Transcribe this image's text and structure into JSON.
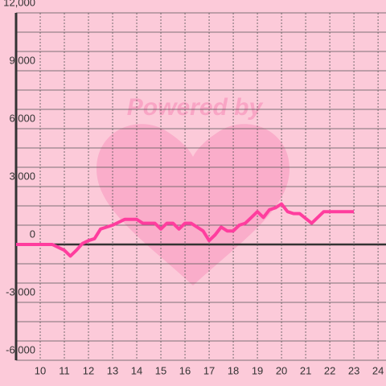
{
  "chart_data": {
    "type": "line",
    "watermark": "Powered by",
    "x": [
      9,
      10.5,
      11,
      11.25,
      11.5,
      11.75,
      12,
      12.25,
      12.5,
      13,
      13.5,
      14,
      14.25,
      14.75,
      15,
      15.25,
      15.5,
      15.75,
      16,
      16.25,
      16.75,
      17,
      17.25,
      17.5,
      17.75,
      18,
      18.25,
      18.5,
      18.75,
      19,
      19.25,
      19.5,
      19.75,
      20,
      20.25,
      20.5,
      20.75,
      21.25,
      21.75,
      22.25,
      23
    ],
    "series": [
      {
        "color": "#ff3d9e",
        "values": [
          0,
          0,
          -300,
          -600,
          -300,
          50,
          200,
          300,
          800,
          1000,
          1300,
          1300,
          1100,
          1100,
          800,
          1100,
          1100,
          800,
          1100,
          1100,
          700,
          200,
          500,
          900,
          700,
          700,
          1000,
          1100,
          1400,
          1700,
          1400,
          1800,
          1900,
          2100,
          1700,
          1600,
          1600,
          1100,
          1700,
          1700,
          1700
        ]
      }
    ],
    "xlim": [
      9,
      24.33
    ],
    "xticks": [
      10,
      11,
      12,
      13,
      14,
      15,
      16,
      17,
      18,
      19,
      20,
      21,
      22,
      23,
      24
    ],
    "ylim": [
      -6000,
      12000
    ],
    "yticks": [
      {
        "value": 12000,
        "label": "12,000"
      },
      {
        "value": 9000,
        "label": "9,000"
      },
      {
        "value": 6000,
        "label": "6,000"
      },
      {
        "value": 3000,
        "label": "3,000"
      },
      0,
      {
        "value": -3000,
        "label": "-3,000"
      },
      {
        "value": -6000,
        "label": "-6,000"
      }
    ],
    "yminor_ticks": [
      11000,
      10000,
      8000,
      7000,
      5000,
      4000,
      2000,
      1000,
      -1000,
      -2000,
      -4000,
      -5000
    ],
    "grid": true
  }
}
